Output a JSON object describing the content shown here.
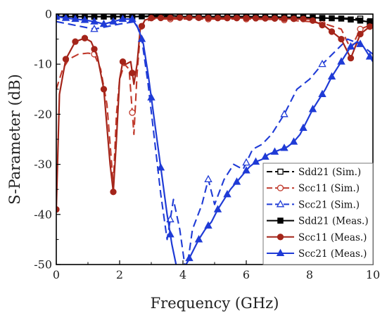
{
  "chart_data": {
    "type": "line",
    "xlabel": "Frequency (GHz)",
    "ylabel": "S-Parameter (dB)",
    "xlim": [
      0,
      10
    ],
    "ylim": [
      -50,
      0
    ],
    "xticks": [
      0,
      2,
      4,
      6,
      8,
      10
    ],
    "yticks": [
      0,
      -10,
      -20,
      -30,
      -40,
      -50
    ],
    "xtick_labels": [
      "0",
      "2",
      "4",
      "6",
      "8",
      "10"
    ],
    "ytick_labels": [
      "0",
      "-10",
      "-20",
      "-30",
      "-40",
      "-50"
    ],
    "legend_position": "bottom-right",
    "series": [
      {
        "name": "Sdd21 (Sim.)",
        "color": "#000000",
        "dash": true,
        "marker": "square-open",
        "x": [
          0,
          0.5,
          1,
          1.5,
          2,
          2.5,
          3,
          3.5,
          4,
          4.5,
          5,
          5.5,
          6,
          6.5,
          7,
          7.5,
          8,
          8.5,
          9,
          9.5,
          10
        ],
        "y": [
          -0.5,
          -0.5,
          -0.5,
          -0.5,
          -0.5,
          -0.5,
          -0.5,
          -0.5,
          -0.6,
          -0.6,
          -0.6,
          -0.6,
          -0.6,
          -0.6,
          -0.6,
          -0.7,
          -0.8,
          -0.8,
          -0.8,
          -0.9,
          -1.0
        ],
        "marker_x": [
          0,
          1.2,
          2.4,
          3.6,
          4.8,
          6.0,
          7.2,
          8.4,
          9.6
        ]
      },
      {
        "name": "Scc11 (Sim.)",
        "color": "#c0392b",
        "dash": true,
        "marker": "circle-open",
        "x": [
          0,
          0.2,
          0.4,
          0.7,
          1.0,
          1.2,
          1.4,
          1.6,
          1.8,
          1.9,
          2.0,
          2.15,
          2.3,
          2.45,
          2.55,
          2.65,
          2.75,
          3.0,
          4,
          5,
          6,
          7,
          8,
          8.5,
          9.0,
          9.3,
          9.6,
          10
        ],
        "y": [
          -15,
          -11,
          -9,
          -8,
          -7.8,
          -8,
          -11,
          -18,
          -34,
          -20,
          -13,
          -10,
          -11,
          -24,
          -12,
          -4,
          -1.8,
          -1.0,
          -1.0,
          -1.0,
          -1.0,
          -1.1,
          -1.5,
          -2.0,
          -3,
          -7,
          -3,
          -2.0
        ],
        "marker_x": [
          1.2,
          2.4,
          3.6,
          4.8,
          6.0,
          7.2,
          8.4,
          9.6
        ]
      },
      {
        "name": "Scc21 (Sim.)",
        "color": "#1f3bd6",
        "dash": true,
        "marker": "triangle-open",
        "x": [
          0,
          0.4,
          0.8,
          1.2,
          1.6,
          2.0,
          2.5,
          2.7,
          2.9,
          3.1,
          3.3,
          3.5,
          3.7,
          3.9,
          4.1,
          4.3,
          4.6,
          4.8,
          5.0,
          5.3,
          5.6,
          5.9,
          6.2,
          6.5,
          6.8,
          7.2,
          7.6,
          8.0,
          8.4,
          8.8,
          9.2,
          9.6,
          10
        ],
        "y": [
          -1.5,
          -2.0,
          -2.5,
          -3.0,
          -2.5,
          -2.0,
          -1.5,
          -5,
          -14,
          -25,
          -36,
          -45,
          -37,
          -43,
          -52,
          -43,
          -38,
          -33,
          -38,
          -33,
          -30,
          -31,
          -27,
          -26,
          -24,
          -20,
          -15,
          -13,
          -10,
          -7.5,
          -5,
          -6,
          -8
        ],
        "marker_x": [
          1.2,
          3.6,
          4.8,
          6.0,
          7.2,
          8.4,
          9.6
        ]
      },
      {
        "name": "Sdd21 (Meas.)",
        "color": "#000000",
        "dash": false,
        "marker": "square-filled",
        "x": [
          0,
          1,
          2,
          2.5,
          3,
          3.3,
          3.6,
          4,
          5,
          6,
          7,
          8,
          8.5,
          9,
          9.5,
          10
        ],
        "y": [
          -0.5,
          -0.5,
          -0.5,
          -0.5,
          -0.4,
          -0.1,
          -0.3,
          -0.5,
          -0.5,
          -0.5,
          -0.6,
          -0.7,
          -0.8,
          -0.9,
          -1.2,
          -1.7
        ],
        "marker_x": [
          0,
          0.3,
          0.6,
          0.9,
          1.2,
          1.5,
          1.8,
          2.1,
          2.4,
          2.7,
          3.0,
          3.3,
          3.6,
          3.9,
          4.2,
          4.5,
          4.8,
          5.1,
          5.4,
          5.7,
          6.0,
          6.3,
          6.6,
          6.9,
          7.2,
          7.5,
          7.8,
          8.1,
          8.4,
          8.7,
          9.0,
          9.3,
          9.6,
          9.9
        ]
      },
      {
        "name": "Scc11 (Meas.)",
        "color": "#a4251a",
        "dash": false,
        "marker": "circle-filled",
        "x": [
          0,
          0.1,
          0.3,
          0.6,
          0.9,
          1.1,
          1.3,
          1.5,
          1.7,
          1.8,
          1.9,
          2.0,
          2.1,
          2.2,
          2.35,
          2.45,
          2.55,
          2.65,
          2.8,
          3.0,
          4,
          5,
          6,
          7,
          8,
          8.5,
          9.0,
          9.3,
          9.6,
          10
        ],
        "y": [
          -39,
          -16,
          -9,
          -5.5,
          -4.8,
          -5.5,
          -8.5,
          -15,
          -30,
          -35.5,
          -25,
          -13,
          -9.5,
          -10,
          -9.5,
          -14,
          -10,
          -3,
          -1.2,
          -0.8,
          -0.7,
          -0.8,
          -0.8,
          -0.9,
          -1.0,
          -2.5,
          -5,
          -8.8,
          -4,
          -2.0
        ],
        "marker_x": [
          0,
          0.3,
          0.6,
          0.9,
          1.2,
          1.5,
          1.8,
          2.1,
          2.4,
          2.7,
          3.0,
          3.3,
          3.6,
          3.9,
          4.2,
          4.5,
          4.8,
          5.1,
          5.4,
          5.7,
          6.0,
          6.3,
          6.6,
          6.9,
          7.2,
          7.5,
          7.8,
          8.1,
          8.4,
          8.7,
          9.0,
          9.3,
          9.6,
          9.9
        ]
      },
      {
        "name": "Scc21 (Meas.)",
        "color": "#1f3bd6",
        "dash": false,
        "marker": "triangle-filled",
        "x": [
          0,
          0.3,
          0.6,
          0.9,
          1.2,
          1.5,
          1.8,
          2.1,
          2.4,
          2.6,
          2.75,
          2.9,
          3.05,
          3.2,
          3.35,
          3.5,
          3.65,
          3.8,
          3.95,
          4.1,
          4.3,
          4.5,
          4.7,
          4.9,
          5.1,
          5.3,
          5.5,
          5.7,
          5.9,
          6.1,
          6.3,
          6.5,
          6.7,
          6.9,
          7.1,
          7.3,
          7.5,
          7.7,
          7.9,
          8.1,
          8.3,
          8.5,
          8.7,
          8.9,
          9.1,
          9.3,
          9.5,
          9.7,
          9.9,
          10
        ],
        "y": [
          -0.5,
          -0.8,
          -1.0,
          -1.2,
          -1.5,
          -2.0,
          -1.5,
          -1.0,
          -1.0,
          -3.0,
          -6.0,
          -12.0,
          -19.0,
          -26.0,
          -33.0,
          -40.0,
          -46.0,
          -50.5,
          -51.5,
          -50.0,
          -47.5,
          -45.0,
          -43.0,
          -41.5,
          -39.0,
          -37.0,
          -35.0,
          -33.5,
          -32.0,
          -30.5,
          -29.5,
          -29.0,
          -28.0,
          -27.5,
          -27.0,
          -26.5,
          -25.5,
          -24.0,
          -21.5,
          -19.0,
          -17.0,
          -15.0,
          -12.5,
          -10.5,
          -8.5,
          -6.5,
          -5.5,
          -6.5,
          -8.5,
          -9.5
        ],
        "marker_x": [
          0,
          0.3,
          0.6,
          0.9,
          1.2,
          1.5,
          1.8,
          2.1,
          2.4,
          2.7,
          3.0,
          3.3,
          3.6,
          3.9,
          4.2,
          4.5,
          4.8,
          5.1,
          5.4,
          5.7,
          6.0,
          6.3,
          6.6,
          6.9,
          7.2,
          7.5,
          7.8,
          8.1,
          8.4,
          8.7,
          9.0,
          9.3,
          9.6,
          9.9
        ]
      }
    ]
  }
}
